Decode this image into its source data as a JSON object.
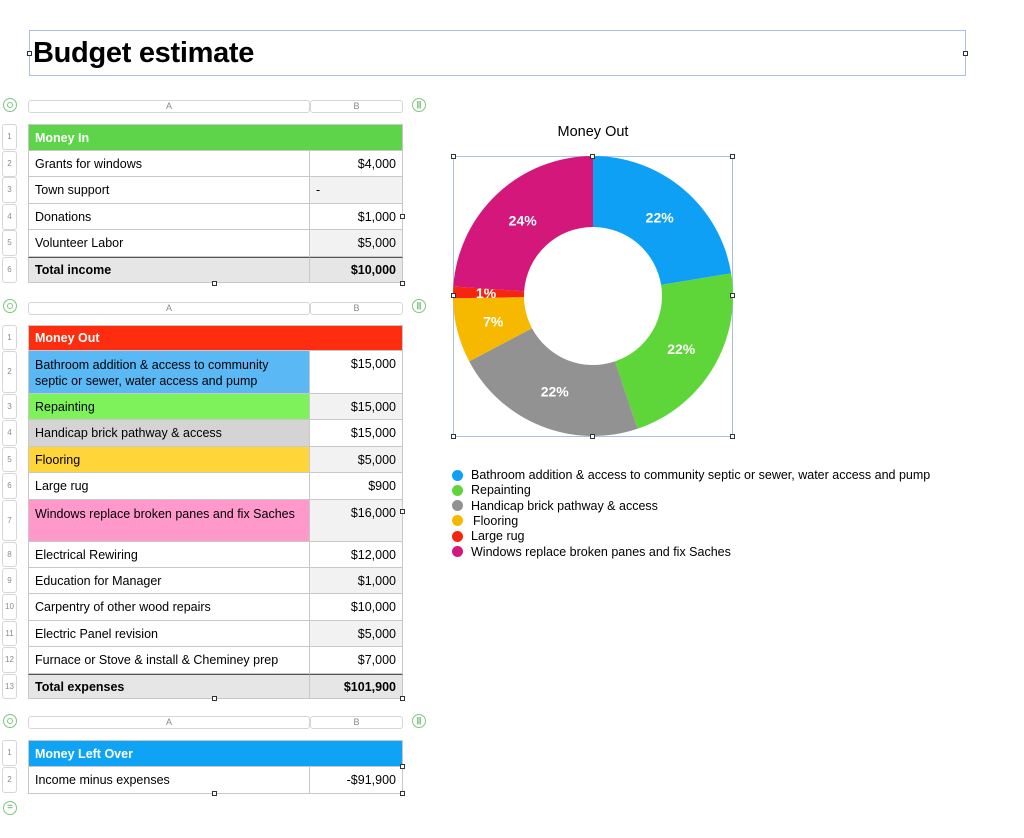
{
  "title": "Budget estimate",
  "col_headers": {
    "a": "A",
    "b": "B"
  },
  "money_in": {
    "header": "Money In",
    "header_color": "#5ed44b",
    "rows": [
      {
        "num": "1"
      },
      {
        "num": "2",
        "label": "Grants for windows",
        "value": "$4,000"
      },
      {
        "num": "3",
        "label": "Town support",
        "value": "-"
      },
      {
        "num": "4",
        "label": "Donations",
        "value": "$1,000"
      },
      {
        "num": "5",
        "label": "Volunteer Labor",
        "value": "$5,000"
      },
      {
        "num": "6",
        "label": "Total income",
        "value": "$10,000"
      }
    ]
  },
  "money_out": {
    "header": "Money Out",
    "header_color": "#ff2d0f",
    "rows": [
      {
        "num": "1"
      },
      {
        "num": "2",
        "label": "Bathroom addition & access to community septic or sewer, water access and pump",
        "value": "$15,000",
        "color": "#5ab8f5"
      },
      {
        "num": "3",
        "label": "Repainting",
        "value": "$15,000",
        "color": "#7ef25a"
      },
      {
        "num": "4",
        "label": "Handicap brick pathway & access",
        "value": "$15,000",
        "color": "#d4d4d4"
      },
      {
        "num": "5",
        "label": "Flooring",
        "value": "$5,000",
        "color": "#ffd53a"
      },
      {
        "num": "6",
        "label": "Large rug",
        "value": "$900"
      },
      {
        "num": "7",
        "label": "Windows replace broken panes and fix Saches",
        "value": "$16,000",
        "color": "#ff99cc"
      },
      {
        "num": "8",
        "label": "Electrical Rewiring",
        "value": "$12,000"
      },
      {
        "num": "9",
        "label": "Education for Manager",
        "value": "$1,000"
      },
      {
        "num": "10",
        "label": "Carpentry of other wood repairs",
        "value": "$10,000"
      },
      {
        "num": "11",
        "label": "Electric Panel revision",
        "value": "$5,000"
      },
      {
        "num": "12",
        "label": "Furnace or Stove & install  & Cheminey prep",
        "value": "$7,000"
      },
      {
        "num": "13",
        "label": "Total expenses",
        "value": "$101,900"
      }
    ]
  },
  "money_left": {
    "header": "Money Left Over",
    "header_color": "#0fa3f5",
    "rows": [
      {
        "num": "1"
      },
      {
        "num": "2",
        "label": "Income minus expenses",
        "value": "-$91,900"
      }
    ]
  },
  "chart_data": {
    "type": "pie",
    "title": "Money Out",
    "donut": true,
    "labels": [
      "Bathroom addition & access to community septic or sewer, water access and pump",
      "Repainting",
      "Handicap brick pathway & access",
      "Flooring",
      "Large rug",
      "Windows replace broken panes and fix Saches"
    ],
    "values": [
      15000,
      15000,
      15000,
      5000,
      900,
      16000
    ],
    "percent_labels": [
      "22%",
      "22%",
      "22%",
      "7%",
      "1%",
      "24%"
    ],
    "colors": [
      "#0ea0f5",
      "#5ed63a",
      "#929292",
      "#f7b900",
      "#f5250f",
      "#d4177b"
    ],
    "legend_position": "bottom"
  }
}
